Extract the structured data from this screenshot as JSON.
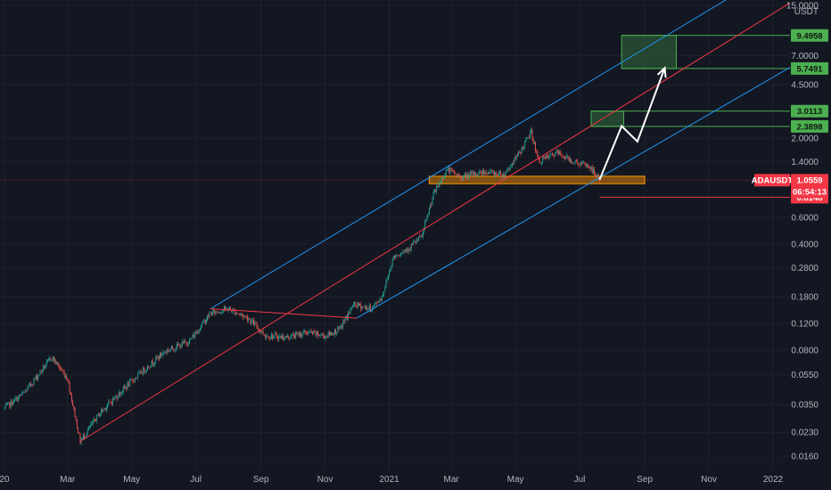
{
  "chart_data": {
    "type": "candlestick",
    "symbol": "ADAUSDT",
    "quote_currency": "USDT",
    "y_scale": "log",
    "y_axis_labels": [
      "15.0000",
      "7.0000",
      "4.5000",
      "2.0000",
      "1.4000",
      "0.6000",
      "0.4000",
      "0.2800",
      "0.1800",
      "0.1200",
      "0.0800",
      "0.0550",
      "0.0350",
      "0.0230",
      "0.0160"
    ],
    "y_axis_values": [
      15,
      7,
      4.5,
      2,
      1.4,
      0.6,
      0.4,
      0.28,
      0.18,
      0.12,
      0.08,
      0.055,
      0.035,
      0.023,
      0.016
    ],
    "x_axis_labels": [
      "20",
      "Mar",
      "May",
      "Jul",
      "Sep",
      "Nov",
      "2021",
      "Mar",
      "May",
      "Jul",
      "Sep",
      "Nov",
      "2022"
    ],
    "x_axis_dates": [
      "2020-01-01",
      "2020-03-01",
      "2020-05-01",
      "2020-07-01",
      "2020-09-01",
      "2020-11-01",
      "2021-01-01",
      "2021-03-01",
      "2021-05-01",
      "2021-07-01",
      "2021-09-01",
      "2021-11-01",
      "2022-01-01"
    ],
    "price_path": [
      [
        "2020-01-01",
        0.033
      ],
      [
        "2020-01-20",
        0.042
      ],
      [
        "2020-02-15",
        0.072
      ],
      [
        "2020-03-01",
        0.052
      ],
      [
        "2020-03-13",
        0.02
      ],
      [
        "2020-04-01",
        0.031
      ],
      [
        "2020-05-01",
        0.05
      ],
      [
        "2020-06-01",
        0.078
      ],
      [
        "2020-06-25",
        0.092
      ],
      [
        "2020-07-15",
        0.14
      ],
      [
        "2020-08-01",
        0.15
      ],
      [
        "2020-08-20",
        0.13
      ],
      [
        "2020-09-05",
        0.1
      ],
      [
        "2020-09-25",
        0.097
      ],
      [
        "2020-10-15",
        0.105
      ],
      [
        "2020-11-01",
        0.099
      ],
      [
        "2020-11-15",
        0.11
      ],
      [
        "2020-11-28",
        0.16
      ],
      [
        "2020-12-15",
        0.15
      ],
      [
        "2020-12-25",
        0.18
      ],
      [
        "2021-01-05",
        0.33
      ],
      [
        "2021-01-20",
        0.38
      ],
      [
        "2021-02-01",
        0.45
      ],
      [
        "2021-02-12",
        0.85
      ],
      [
        "2021-02-25",
        1.25
      ],
      [
        "2021-03-10",
        1.1
      ],
      [
        "2021-04-01",
        1.2
      ],
      [
        "2021-04-20",
        1.15
      ],
      [
        "2021-05-05",
        1.6
      ],
      [
        "2021-05-16",
        2.2
      ],
      [
        "2021-05-23",
        1.4
      ],
      [
        "2021-06-10",
        1.6
      ],
      [
        "2021-06-25",
        1.4
      ],
      [
        "2021-07-10",
        1.3
      ],
      [
        "2021-07-20",
        1.06
      ]
    ],
    "price_tags": [
      {
        "label": "9.4958",
        "value": 9.4958,
        "color": "#4caf50"
      },
      {
        "label": "5.7491",
        "value": 5.7491,
        "color": "#4caf50"
      },
      {
        "label": "3.0113",
        "value": 3.0113,
        "color": "#4caf50"
      },
      {
        "label": "2.3898",
        "value": 2.3898,
        "color": "#4caf50"
      },
      {
        "label": "0.8148",
        "value": 0.8148,
        "color": "#f23645"
      }
    ],
    "current": {
      "symbol_label": "ADAUSDT",
      "price_label": "1.0559",
      "value": 1.0559,
      "countdown": "06:54:13",
      "color": "#f23645"
    },
    "support_zone": {
      "from_date": "2021-02-08",
      "to_date": "2021-09-01",
      "low": 1.0,
      "high": 1.12
    },
    "target_boxes": [
      {
        "from_date": "2021-07-12",
        "to_date": "2021-08-12",
        "low": 2.3898,
        "high": 3.0113
      },
      {
        "from_date": "2021-08-10",
        "to_date": "2021-10-01",
        "low": 5.7491,
        "high": 9.4958
      }
    ],
    "projection_path": [
      [
        "2021-07-20",
        1.06
      ],
      [
        "2021-08-10",
        2.4
      ],
      [
        "2021-08-25",
        1.9
      ],
      [
        "2021-09-20",
        5.8
      ]
    ],
    "channel_lines": [
      {
        "name": "upper",
        "color": "#2196f3",
        "points": [
          [
            "2020-07-15",
            0.15
          ],
          [
            "2022-01-20",
            30
          ]
        ]
      },
      {
        "name": "middle",
        "color": "#f23645",
        "points": [
          [
            "2020-03-13",
            0.02
          ],
          [
            "2022-01-20",
            16
          ]
        ]
      },
      {
        "name": "lower",
        "color": "#2196f3",
        "points": [
          [
            "2020-12-01",
            0.13
          ],
          [
            "2022-01-20",
            6
          ]
        ]
      },
      {
        "name": "pitch-start",
        "color": "#f23645",
        "points": [
          [
            "2020-07-15",
            0.15
          ],
          [
            "2020-12-01",
            0.13
          ]
        ]
      }
    ]
  }
}
